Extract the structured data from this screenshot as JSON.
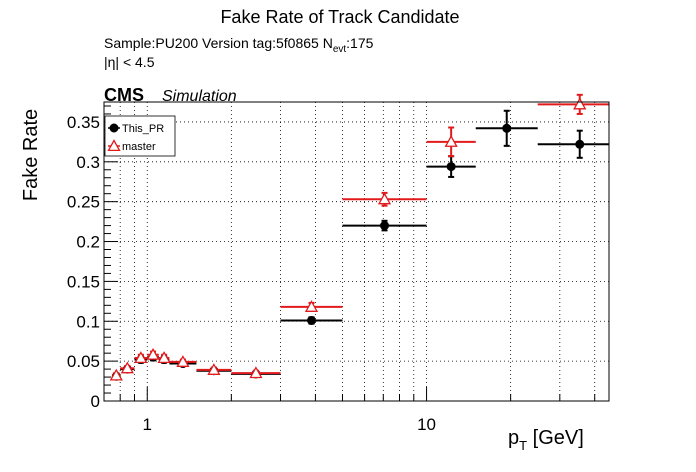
{
  "title": "Fake Rate of Track Candidate",
  "info": {
    "line1_pre": "Sample:PU200   Version tag:5f0865  N",
    "line1_sub": "evt",
    "line1_post": ":175",
    "line2": "|η| < 4.5"
  },
  "cms": {
    "label": "CMS",
    "sublabel": "Simulation"
  },
  "axes": {
    "ylabel": "Fake Rate",
    "xlabel_main": "p",
    "xlabel_sub": "T",
    "xlabel_unit": " [GeV]"
  },
  "colors": {
    "this_pr": "#000000",
    "master": "#e31a1c"
  },
  "chart_data": {
    "type": "scatter",
    "xscale": "log",
    "xlim": [
      0.7,
      45
    ],
    "ylim": [
      0,
      0.375
    ],
    "grid": true,
    "legend_position": "top-left",
    "xticks": [
      {
        "value": 1,
        "label": "1"
      },
      {
        "value": 10,
        "label": "10"
      }
    ],
    "yticks": [
      {
        "value": 0,
        "label": "0"
      },
      {
        "value": 0.05,
        "label": "0.05"
      },
      {
        "value": 0.1,
        "label": "0.1"
      },
      {
        "value": 0.15,
        "label": "0.15"
      },
      {
        "value": 0.2,
        "label": "0.2"
      },
      {
        "value": 0.25,
        "label": "0.25"
      },
      {
        "value": 0.3,
        "label": "0.3"
      },
      {
        "value": 0.35,
        "label": "0.35"
      }
    ],
    "series": [
      {
        "name": "This_PR",
        "color": "#000000",
        "marker": "filled-circle",
        "points": [
          {
            "xlo": 0.75,
            "xhi": 0.8,
            "y": 0.031,
            "err": 0.003
          },
          {
            "xlo": 0.8,
            "xhi": 0.9,
            "y": 0.04,
            "err": 0.003
          },
          {
            "xlo": 0.9,
            "xhi": 1.0,
            "y": 0.052,
            "err": 0.004
          },
          {
            "xlo": 1.0,
            "xhi": 1.1,
            "y": 0.055,
            "err": 0.004
          },
          {
            "xlo": 1.1,
            "xhi": 1.2,
            "y": 0.052,
            "err": 0.004
          },
          {
            "xlo": 1.2,
            "xhi": 1.5,
            "y": 0.047,
            "err": 0.003
          },
          {
            "xlo": 1.5,
            "xhi": 2.0,
            "y": 0.038,
            "err": 0.003
          },
          {
            "xlo": 2.0,
            "xhi": 3.0,
            "y": 0.034,
            "err": 0.003
          },
          {
            "xlo": 3.0,
            "xhi": 5.0,
            "y": 0.101,
            "err": 0.004
          },
          {
            "xlo": 5.0,
            "xhi": 10.0,
            "y": 0.22,
            "err": 0.006
          },
          {
            "xlo": 10.0,
            "xhi": 15.0,
            "y": 0.294,
            "err": 0.013
          },
          {
            "xlo": 15.0,
            "xhi": 25.0,
            "y": 0.342,
            "err": 0.022
          },
          {
            "xlo": 25.0,
            "xhi": 50.0,
            "y": 0.322,
            "err": 0.017
          }
        ]
      },
      {
        "name": "master",
        "color": "#e31a1c",
        "marker": "open-triangle",
        "points": [
          {
            "xlo": 0.75,
            "xhi": 0.8,
            "y": 0.032,
            "err": 0.003
          },
          {
            "xlo": 0.8,
            "xhi": 0.9,
            "y": 0.041,
            "err": 0.003
          },
          {
            "xlo": 0.9,
            "xhi": 1.0,
            "y": 0.054,
            "err": 0.004
          },
          {
            "xlo": 1.0,
            "xhi": 1.1,
            "y": 0.058,
            "err": 0.004
          },
          {
            "xlo": 1.1,
            "xhi": 1.2,
            "y": 0.054,
            "err": 0.004
          },
          {
            "xlo": 1.2,
            "xhi": 1.5,
            "y": 0.049,
            "err": 0.003
          },
          {
            "xlo": 1.5,
            "xhi": 2.0,
            "y": 0.039,
            "err": 0.003
          },
          {
            "xlo": 2.0,
            "xhi": 3.0,
            "y": 0.035,
            "err": 0.003
          },
          {
            "xlo": 3.0,
            "xhi": 5.0,
            "y": 0.118,
            "err": 0.005
          },
          {
            "xlo": 5.0,
            "xhi": 10.0,
            "y": 0.253,
            "err": 0.008
          },
          {
            "xlo": 10.0,
            "xhi": 15.0,
            "y": 0.325,
            "err": 0.018
          },
          {
            "xlo": 15.0,
            "xhi": 25.0,
            "y": null,
            "err": 0
          },
          {
            "xlo": 25.0,
            "xhi": 50.0,
            "y": 0.372,
            "err": 0.012
          }
        ]
      }
    ]
  }
}
